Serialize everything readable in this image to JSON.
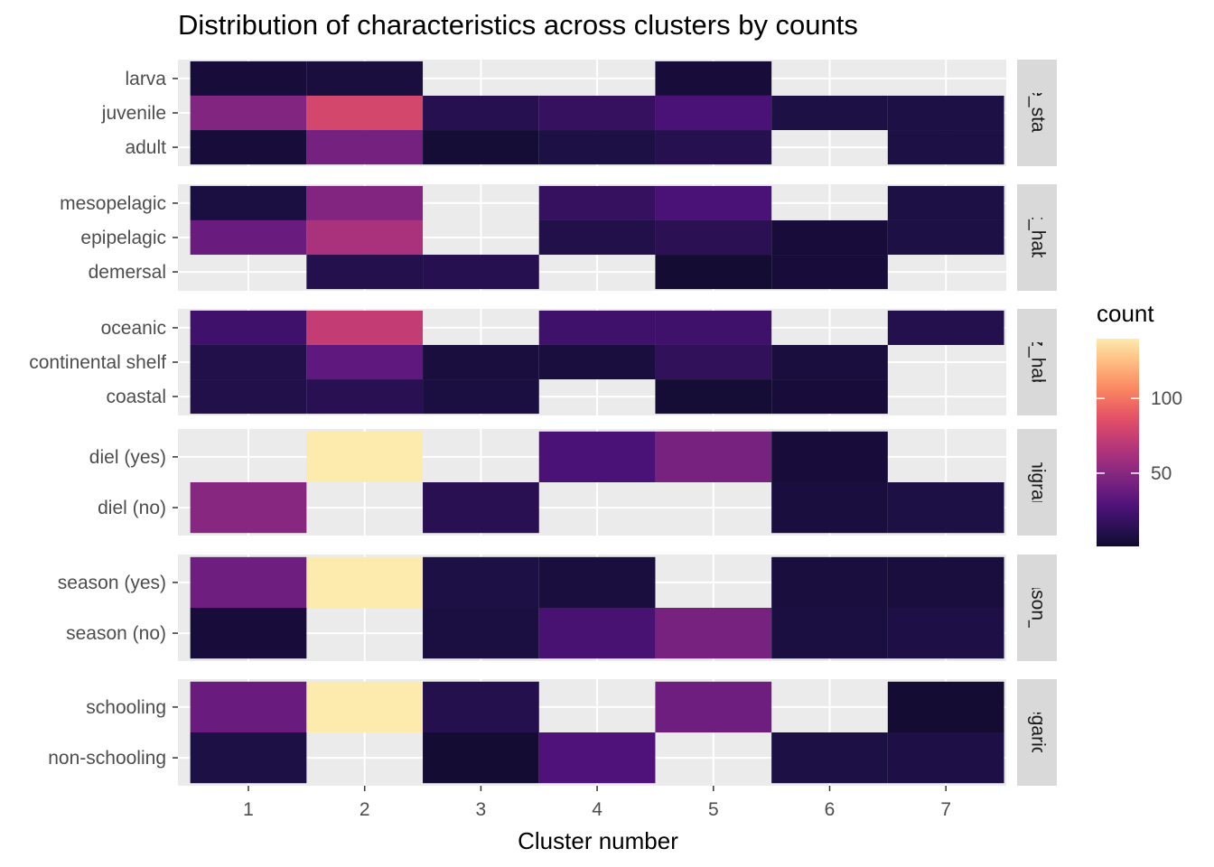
{
  "chart_data": {
    "type": "heatmap",
    "title": "Distribution of characteristics across clusters by counts",
    "xlabel": "Cluster number",
    "ylabel": "",
    "x_categories": [
      "1",
      "2",
      "3",
      "4",
      "5",
      "6",
      "7"
    ],
    "colorscale": "magma",
    "color_range": [
      1,
      140
    ],
    "legend": {
      "title": "count",
      "ticks": [
        50,
        100
      ],
      "position": "right",
      "stops": [
        "#000004",
        "#1c1044",
        "#4f127b",
        "#812581",
        "#b5367a",
        "#e55064",
        "#fb8861",
        "#fec287",
        "#fcfdbf"
      ]
    },
    "panels": [
      {
        "strip": "life_stage",
        "rows": [
          "larva",
          "juvenile",
          "adult"
        ],
        "values": [
          [
            5,
            6,
            null,
            null,
            5,
            null,
            null
          ],
          [
            48,
            80,
            12,
            18,
            26,
            8,
            8
          ],
          [
            5,
            43,
            4,
            8,
            12,
            null,
            8
          ]
        ]
      },
      {
        "strip": "vert_habitat",
        "rows": [
          "mesopelagic",
          "epipelagic",
          "demersal"
        ],
        "values": [
          [
            7,
            48,
            null,
            18,
            26,
            null,
            8
          ],
          [
            38,
            63,
            null,
            10,
            14,
            5,
            8
          ],
          [
            null,
            11,
            12,
            null,
            3,
            5,
            null
          ]
        ]
      },
      {
        "strip": "horz_habitat",
        "rows": [
          "oceanic",
          "continental shelf",
          "coastal"
        ],
        "values": [
          [
            22,
            73,
            null,
            22,
            22,
            null,
            11
          ],
          [
            10,
            34,
            6,
            6,
            16,
            6,
            null
          ],
          [
            10,
            13,
            7,
            null,
            4,
            5,
            null
          ]
        ]
      },
      {
        "strip": "diel_migrant_cat",
        "rows": [
          "diel (yes)",
          "diel (no)"
        ],
        "values": [
          [
            null,
            140,
            null,
            26,
            44,
            5,
            null
          ],
          [
            50,
            null,
            13,
            null,
            null,
            6,
            8
          ]
        ]
      },
      {
        "strip": "season_cat",
        "rows": [
          "season (yes)",
          "season (no)"
        ],
        "values": [
          [
            40,
            140,
            8,
            6,
            null,
            6,
            6
          ],
          [
            5,
            null,
            7,
            25,
            44,
            7,
            9
          ]
        ]
      },
      {
        "strip": "gregarious",
        "rows": [
          "schooling",
          "non-schooling"
        ],
        "values": [
          [
            38,
            140,
            11,
            null,
            40,
            null,
            3
          ],
          [
            8,
            null,
            3,
            28,
            null,
            8,
            9
          ]
        ]
      }
    ]
  }
}
